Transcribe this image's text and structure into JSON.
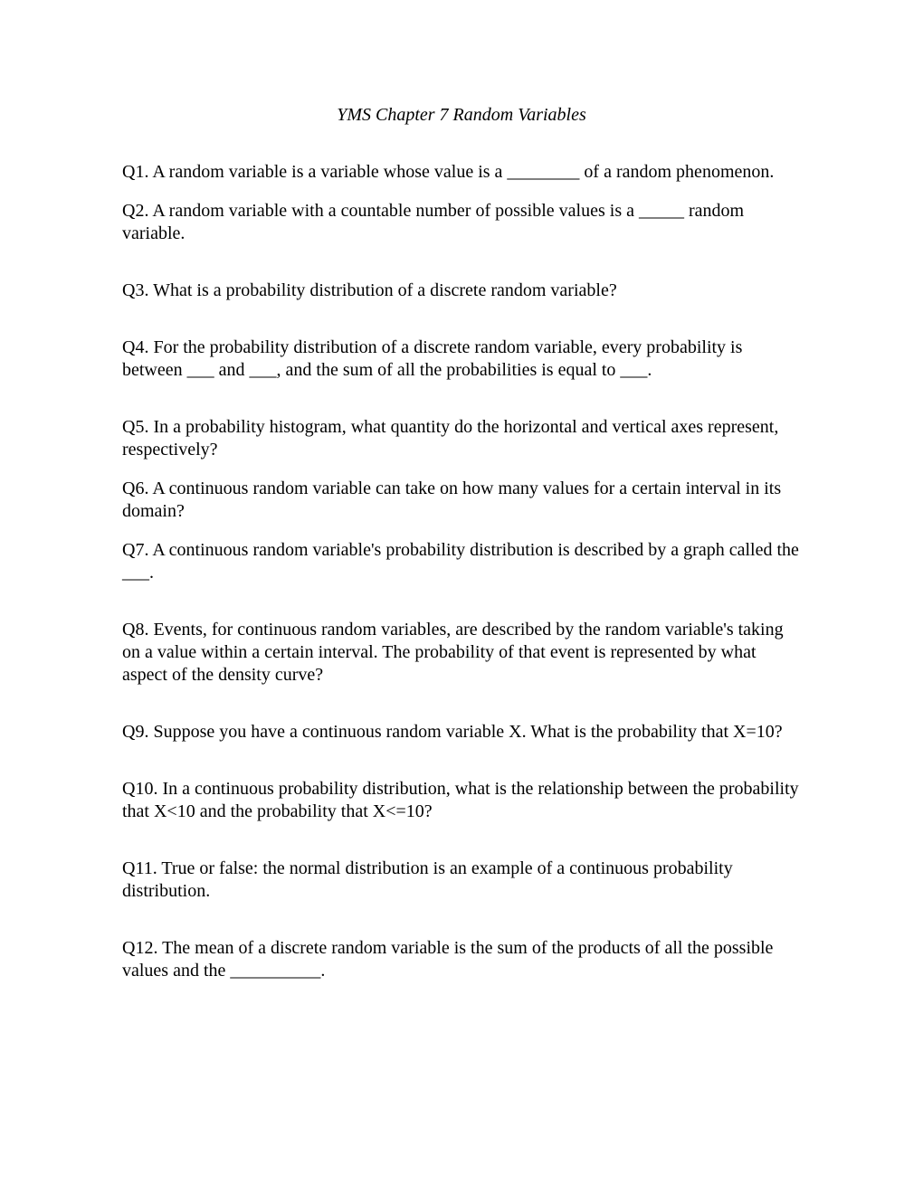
{
  "title": "YMS Chapter 7 Random Variables",
  "questions": {
    "q1": "Q1. A random variable is a variable whose value is a ________ of a random phenomenon.",
    "q2": "Q2. A random variable with a countable number of possible values is a _____ random variable.",
    "q3": "Q3. What is a probability distribution of a discrete random variable?",
    "q4": "Q4. For the probability distribution of a discrete random variable, every probability is between ___ and ___, and the sum of all the probabilities is equal to ___.",
    "q5": "Q5. In a probability histogram, what quantity do the horizontal and vertical axes represent, respectively?",
    "q6": "Q6. A continuous random variable can take on how many values for a certain interval in its domain?",
    "q7": "Q7. A continuous random variable's probability distribution is described by a graph called the ___.",
    "q8": "Q8.  Events, for continuous random variables, are described by the random variable's taking on a value within a certain interval. The probability of that event is represented by what aspect of the density curve?",
    "q9": "Q9. Suppose you have a continuous random variable X. What is the probability that X=10?",
    "q10": "Q10. In a continuous probability distribution, what is the relationship between the probability that X<10 and the probability that X<=10?",
    "q11": "Q11. True or false: the normal distribution is an example of a continuous probability distribution.",
    "q12": "Q12. The mean of a discrete random variable is the sum of the products of all the possible values and the __________."
  }
}
